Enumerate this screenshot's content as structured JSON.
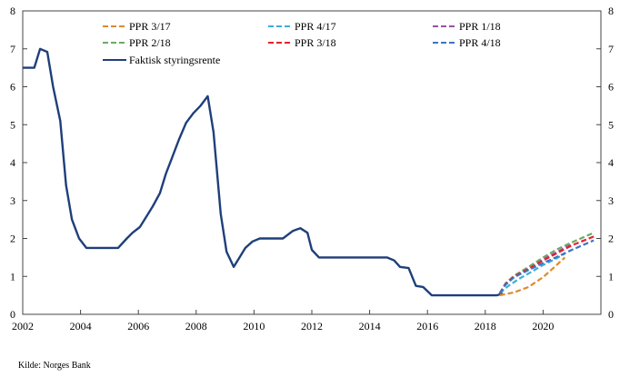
{
  "chart_data": {
    "type": "line",
    "title": "",
    "xlabel": "",
    "ylabel": "",
    "xlim": [
      2002,
      2022
    ],
    "ylim": [
      0,
      8
    ],
    "x_ticks": [
      "2002",
      "2004",
      "2006",
      "2008",
      "2010",
      "2012",
      "2014",
      "2016",
      "2018",
      "2020"
    ],
    "y_ticks": [
      "0",
      "1",
      "2",
      "3",
      "4",
      "5",
      "6",
      "7",
      "8"
    ],
    "legend_position": "top",
    "series": [
      {
        "name": "PPR 3/17",
        "color": "#e08a2c",
        "dashed": true,
        "points": [
          [
            2018.5,
            0.5
          ],
          [
            2019,
            0.58
          ],
          [
            2019.5,
            0.72
          ],
          [
            2020,
            0.98
          ],
          [
            2020.4,
            1.25
          ],
          [
            2020.75,
            1.5
          ]
        ]
      },
      {
        "name": "PPR 4/17",
        "color": "#3aaed8",
        "dashed": true,
        "points": [
          [
            2018.5,
            0.55
          ],
          [
            2018.8,
            0.75
          ],
          [
            2019.2,
            0.95
          ],
          [
            2019.6,
            1.12
          ],
          [
            2020,
            1.3
          ],
          [
            2020.4,
            1.45
          ],
          [
            2020.75,
            1.6
          ]
        ]
      },
      {
        "name": "PPR 1/18",
        "color": "#9b4fa6",
        "dashed": true,
        "points": [
          [
            2018.5,
            0.55
          ],
          [
            2018.7,
            0.8
          ],
          [
            2019,
            1.0
          ],
          [
            2019.5,
            1.2
          ],
          [
            2020,
            1.45
          ],
          [
            2020.5,
            1.65
          ],
          [
            2021,
            1.85
          ]
        ]
      },
      {
        "name": "PPR 2/18",
        "color": "#6aaa64",
        "dashed": true,
        "points": [
          [
            2018.5,
            0.55
          ],
          [
            2018.7,
            0.82
          ],
          [
            2019,
            1.02
          ],
          [
            2019.5,
            1.25
          ],
          [
            2020,
            1.5
          ],
          [
            2020.5,
            1.72
          ],
          [
            2021,
            1.9
          ],
          [
            2021.75,
            2.15
          ]
        ]
      },
      {
        "name": "PPR 3/18",
        "color": "#e8202a",
        "dashed": true,
        "points": [
          [
            2018.5,
            0.55
          ],
          [
            2018.7,
            0.8
          ],
          [
            2019,
            1.0
          ],
          [
            2019.5,
            1.2
          ],
          [
            2020,
            1.42
          ],
          [
            2020.5,
            1.62
          ],
          [
            2021,
            1.82
          ],
          [
            2021.75,
            2.05
          ]
        ]
      },
      {
        "name": "PPR 4/18",
        "color": "#3b73c8",
        "dashed": true,
        "points": [
          [
            2018.5,
            0.55
          ],
          [
            2018.7,
            0.78
          ],
          [
            2019,
            0.98
          ],
          [
            2019.5,
            1.17
          ],
          [
            2020,
            1.35
          ],
          [
            2020.5,
            1.52
          ],
          [
            2021,
            1.7
          ],
          [
            2021.75,
            1.95
          ]
        ]
      },
      {
        "name": "Faktisk styringsrente",
        "color": "#1f3f7a",
        "dashed": false,
        "points": [
          [
            2002,
            6.5
          ],
          [
            2002.4,
            6.5
          ],
          [
            2002.6,
            7.0
          ],
          [
            2002.85,
            6.92
          ],
          [
            2003.05,
            6.0
          ],
          [
            2003.3,
            5.1
          ],
          [
            2003.5,
            3.4
          ],
          [
            2003.7,
            2.5
          ],
          [
            2003.95,
            2.0
          ],
          [
            2004.2,
            1.75
          ],
          [
            2005.3,
            1.75
          ],
          [
            2005.6,
            2.0
          ],
          [
            2005.8,
            2.15
          ],
          [
            2006.05,
            2.3
          ],
          [
            2006.3,
            2.6
          ],
          [
            2006.5,
            2.85
          ],
          [
            2006.75,
            3.2
          ],
          [
            2006.95,
            3.7
          ],
          [
            2007.15,
            4.1
          ],
          [
            2007.4,
            4.6
          ],
          [
            2007.65,
            5.05
          ],
          [
            2007.9,
            5.3
          ],
          [
            2008.15,
            5.5
          ],
          [
            2008.4,
            5.75
          ],
          [
            2008.6,
            4.8
          ],
          [
            2008.85,
            2.65
          ],
          [
            2009.05,
            1.65
          ],
          [
            2009.3,
            1.25
          ],
          [
            2009.5,
            1.5
          ],
          [
            2009.7,
            1.75
          ],
          [
            2009.95,
            1.92
          ],
          [
            2010.2,
            2.0
          ],
          [
            2011.0,
            2.0
          ],
          [
            2011.35,
            2.2
          ],
          [
            2011.6,
            2.27
          ],
          [
            2011.85,
            2.15
          ],
          [
            2012.0,
            1.7
          ],
          [
            2012.25,
            1.5
          ],
          [
            2014.6,
            1.5
          ],
          [
            2014.85,
            1.42
          ],
          [
            2015.05,
            1.25
          ],
          [
            2015.35,
            1.22
          ],
          [
            2015.6,
            0.75
          ],
          [
            2015.85,
            0.72
          ],
          [
            2016.15,
            0.5
          ],
          [
            2018.4,
            0.5
          ],
          [
            2018.6,
            0.55
          ]
        ]
      }
    ]
  },
  "source": "Kilde: Norges Bank"
}
